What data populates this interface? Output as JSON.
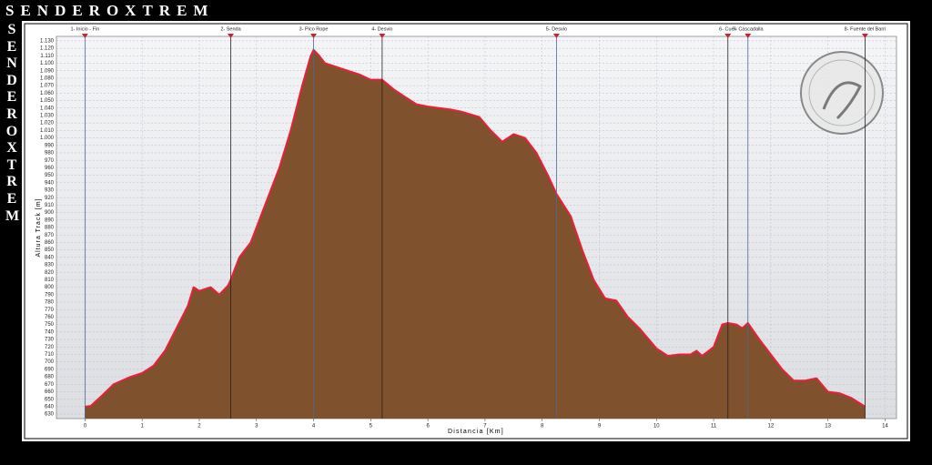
{
  "brand": "SENDEROXTREM",
  "chart_data": {
    "type": "area",
    "x_label": "Distancia [Km]",
    "y_label": "Altura Track [m]",
    "fill_color": "#7f512d",
    "line_color": "#e8203a",
    "grid": true,
    "xlim": [
      -0.5,
      14.2
    ],
    "ylim": [
      624,
      1136
    ],
    "xticks": [
      0,
      1,
      2,
      3,
      4,
      5,
      6,
      7,
      8,
      9,
      10,
      11,
      12,
      13,
      14
    ],
    "yticks": [
      630,
      640,
      650,
      660,
      670,
      680,
      690,
      700,
      710,
      720,
      730,
      740,
      750,
      760,
      770,
      780,
      790,
      800,
      810,
      820,
      830,
      840,
      850,
      860,
      870,
      880,
      890,
      900,
      910,
      920,
      930,
      940,
      950,
      960,
      970,
      980,
      990,
      {
        "value": 1000,
        "label": "1.000"
      },
      {
        "value": 1010,
        "label": "1.010"
      },
      {
        "value": 1020,
        "label": "1.020"
      },
      {
        "value": 1030,
        "label": "1.030"
      },
      {
        "value": 1040,
        "label": "1.040"
      },
      {
        "value": 1050,
        "label": "1.050"
      },
      {
        "value": 1060,
        "label": "1.060"
      },
      {
        "value": 1070,
        "label": "1.070"
      },
      {
        "value": 1080,
        "label": "1.080"
      },
      {
        "value": 1090,
        "label": "1.090"
      },
      {
        "value": 1100,
        "label": "1.100"
      },
      {
        "value": 1110,
        "label": "1.110"
      },
      {
        "value": 1120,
        "label": "1.120"
      },
      {
        "value": 1130,
        "label": "1.130"
      }
    ],
    "x": [
      0,
      0.1,
      0.3,
      0.5,
      0.8,
      1.0,
      1.2,
      1.4,
      1.6,
      1.8,
      1.9,
      2.0,
      2.2,
      2.35,
      2.5,
      2.55,
      2.7,
      2.9,
      3.05,
      3.2,
      3.4,
      3.6,
      3.8,
      3.95,
      4.0,
      4.1,
      4.2,
      4.4,
      4.6,
      4.8,
      5.0,
      5.2,
      5.4,
      5.6,
      5.8,
      6.0,
      6.2,
      6.4,
      6.6,
      6.9,
      7.1,
      7.3,
      7.5,
      7.7,
      7.9,
      8.1,
      8.25,
      8.5,
      8.7,
      8.9,
      9.1,
      9.3,
      9.5,
      9.7,
      10.0,
      10.2,
      10.4,
      10.6,
      10.7,
      10.8,
      11.0,
      11.15,
      11.25,
      11.4,
      11.5,
      11.6,
      11.8,
      12.0,
      12.2,
      12.4,
      12.6,
      12.8,
      13.0,
      13.2,
      13.4,
      13.65
    ],
    "values": [
      640,
      641,
      655,
      670,
      680,
      685,
      695,
      715,
      745,
      775,
      800,
      795,
      800,
      790,
      802,
      810,
      840,
      860,
      890,
      920,
      960,
      1010,
      1070,
      1110,
      1118,
      1110,
      1100,
      1095,
      1090,
      1085,
      1078,
      1078,
      1065,
      1055,
      1045,
      1042,
      1040,
      1038,
      1035,
      1028,
      1010,
      995,
      1005,
      1000,
      980,
      950,
      925,
      895,
      850,
      810,
      785,
      782,
      760,
      745,
      718,
      708,
      710,
      710,
      715,
      708,
      720,
      750,
      752,
      750,
      745,
      752,
      730,
      710,
      690,
      675,
      675,
      678,
      660,
      658,
      652,
      640
    ],
    "waypoints": [
      {
        "label": "1- Inicio - Fin",
        "x": 0
      },
      {
        "label": "2- Senda",
        "x": 2.55
      },
      {
        "label": "3- Pico Rope",
        "x": 4.0
      },
      {
        "label": "4- Desvio",
        "x": 5.2
      },
      {
        "label": "5- Desvio",
        "x": 8.25
      },
      {
        "label": "6- Cuev",
        "x": 11.25
      },
      {
        "label": "7- Cascadalla",
        "x": 11.6
      },
      {
        "label": "8- Fuente del Barri",
        "x": 13.65
      }
    ]
  }
}
